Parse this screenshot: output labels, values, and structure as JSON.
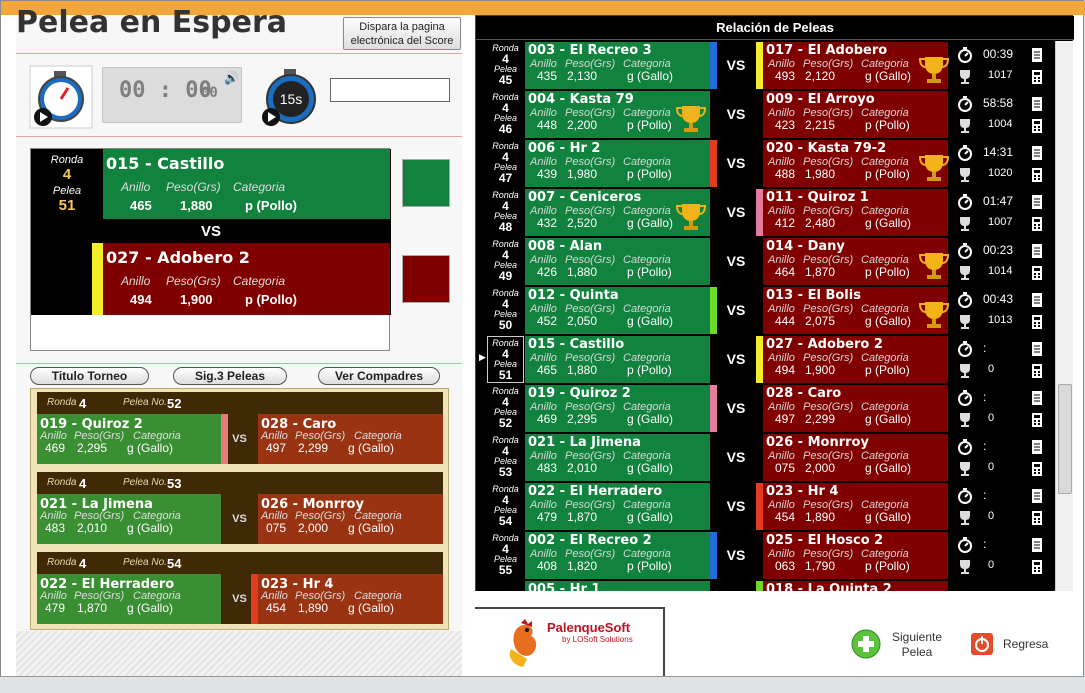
{
  "title": "Pelea en Espera",
  "dispara": [
    "Dispara la pagina",
    "electrónica del Score"
  ],
  "clock": {
    "time": "00 : 00",
    "sec": "00",
    "speaker": "🔊"
  },
  "countdown_label": "15s",
  "current": {
    "ronda_label": "Ronda",
    "ronda": "4",
    "pelea_label": "Pelea",
    "pelea": "51",
    "green": {
      "name": "015 - Castillo",
      "anillo": "465",
      "peso": "1,880",
      "cat": "p (Pollo)"
    },
    "vs": "VS",
    "red": {
      "name": "027 - Adobero 2",
      "anillo": "494",
      "peso": "1,900",
      "cat": "p (Pollo)"
    },
    "lbl_anillo": "Anillo",
    "lbl_peso": "Peso(Grs)",
    "lbl_cat": "Categoria"
  },
  "buttons": {
    "titulo": "Titulo Torneo",
    "sig3": "Sig.3 Peleas",
    "compadres": "Ver Compadres"
  },
  "next3": [
    {
      "ronda": "4",
      "pelea": "52",
      "strip": "#e57c7c",
      "g": {
        "name": "019 - Quiroz 2",
        "anillo": "469",
        "peso": "2,295",
        "cat": "g (Gallo)"
      },
      "r": {
        "name": "028 - Caro",
        "anillo": "497",
        "peso": "2,299",
        "cat": "g (Gallo)"
      }
    },
    {
      "ronda": "4",
      "pelea": "53",
      "strip": "",
      "g": {
        "name": "021 - La Jimena",
        "anillo": "483",
        "peso": "2,010",
        "cat": "g (Gallo)"
      },
      "r": {
        "name": "026 - Monrroy",
        "anillo": "075",
        "peso": "2,000",
        "cat": "g (Gallo)"
      }
    },
    {
      "ronda": "4",
      "pelea": "54",
      "strip": "#e43a1f",
      "g": {
        "name": "022 - El Herradero",
        "anillo": "479",
        "peso": "1,870",
        "cat": "g (Gallo)"
      },
      "r": {
        "name": "023 - Hr 4",
        "anillo": "454",
        "peso": "1,890",
        "cat": "g (Gallo)"
      }
    }
  ],
  "next_labels": {
    "ronda": "Ronda",
    "pelea": "Pelea No.",
    "vs": "VS",
    "anillo": "Anillo",
    "peso": "Peso(Grs)",
    "cat": "Categoria"
  },
  "rel_title": "Relación de Peleas",
  "rows": [
    {
      "ronda": "4",
      "pelea": "45",
      "g": {
        "name": "003 - El Recreo 3",
        "anillo": "435",
        "peso": "2,130",
        "cat": "g (Gallo)"
      },
      "gstrip": "#1e6fd9",
      "rstrip": "#f6ed2a",
      "r": {
        "name": "017 - El Adobero",
        "anillo": "493",
        "peso": "2,120",
        "cat": "g (Gallo)"
      },
      "win": "r",
      "time": "00:39",
      "code": "1017"
    },
    {
      "ronda": "4",
      "pelea": "46",
      "g": {
        "name": "004 - Kasta 79",
        "anillo": "448",
        "peso": "2,200",
        "cat": "p (Pollo)"
      },
      "gstrip": "",
      "rstrip": "",
      "r": {
        "name": "009 - El Arroyo",
        "anillo": "423",
        "peso": "2,215",
        "cat": "p (Pollo)"
      },
      "win": "g",
      "time": "58:58",
      "code": "1004"
    },
    {
      "ronda": "4",
      "pelea": "47",
      "g": {
        "name": "006 - Hr 2",
        "anillo": "439",
        "peso": "1,980",
        "cat": "p (Pollo)"
      },
      "gstrip": "#e43a1f",
      "rstrip": "",
      "r": {
        "name": "020 - Kasta 79-2",
        "anillo": "488",
        "peso": "1,980",
        "cat": "p (Pollo)"
      },
      "win": "r",
      "time": "14:31",
      "code": "1020"
    },
    {
      "ronda": "4",
      "pelea": "48",
      "g": {
        "name": "007 - Ceniceros",
        "anillo": "432",
        "peso": "2,520",
        "cat": "g (Gallo)"
      },
      "gstrip": "",
      "rstrip": "#e57ca0",
      "r": {
        "name": "011 - Quiroz 1",
        "anillo": "412",
        "peso": "2,480",
        "cat": "g (Gallo)"
      },
      "win": "g",
      "time": "01:47",
      "code": "1007"
    },
    {
      "ronda": "4",
      "pelea": "49",
      "g": {
        "name": "008 - Alan",
        "anillo": "426",
        "peso": "1,880",
        "cat": "p (Pollo)"
      },
      "gstrip": "",
      "rstrip": "",
      "r": {
        "name": "014 - Dany",
        "anillo": "464",
        "peso": "1,870",
        "cat": "p (Pollo)"
      },
      "win": "r",
      "time": "00:23",
      "code": "1014"
    },
    {
      "ronda": "4",
      "pelea": "50",
      "g": {
        "name": "012 - Quinta",
        "anillo": "452",
        "peso": "2,050",
        "cat": "g (Gallo)"
      },
      "gstrip": "#6fd92a",
      "rstrip": "",
      "r": {
        "name": "013 - El Bolis",
        "anillo": "444",
        "peso": "2,075",
        "cat": "g (Gallo)"
      },
      "win": "r",
      "time": "00:43",
      "code": "1013"
    },
    {
      "ronda": "4",
      "pelea": "51",
      "g": {
        "name": "015 - Castillo",
        "anillo": "465",
        "peso": "1,880",
        "cat": "p (Pollo)"
      },
      "gstrip": "",
      "rstrip": "#f6ed2a",
      "r": {
        "name": "027 - Adobero 2",
        "anillo": "494",
        "peso": "1,900",
        "cat": "p (Pollo)"
      },
      "win": "",
      "time": ":",
      "code": "0",
      "current": true
    },
    {
      "ronda": "4",
      "pelea": "52",
      "g": {
        "name": "019 - Quiroz 2",
        "anillo": "469",
        "peso": "2,295",
        "cat": "g (Gallo)"
      },
      "gstrip": "#e57ca0",
      "rstrip": "",
      "r": {
        "name": "028 - Caro",
        "anillo": "497",
        "peso": "2,299",
        "cat": "g (Gallo)"
      },
      "win": "",
      "time": ":",
      "code": "0"
    },
    {
      "ronda": "4",
      "pelea": "53",
      "g": {
        "name": "021 - La Jimena",
        "anillo": "483",
        "peso": "2,010",
        "cat": "g (Gallo)"
      },
      "gstrip": "",
      "rstrip": "",
      "r": {
        "name": "026 - Monrroy",
        "anillo": "075",
        "peso": "2,000",
        "cat": "g (Gallo)"
      },
      "win": "",
      "time": ":",
      "code": "0"
    },
    {
      "ronda": "4",
      "pelea": "54",
      "g": {
        "name": "022 - El Herradero",
        "anillo": "479",
        "peso": "1,870",
        "cat": "g (Gallo)"
      },
      "gstrip": "",
      "rstrip": "#e43a1f",
      "r": {
        "name": "023 - Hr 4",
        "anillo": "454",
        "peso": "1,890",
        "cat": "g (Gallo)"
      },
      "win": "",
      "time": ":",
      "code": "0"
    },
    {
      "ronda": "4",
      "pelea": "55",
      "g": {
        "name": "002 - El Recreo 2",
        "anillo": "408",
        "peso": "1,820",
        "cat": "p (Pollo)"
      },
      "gstrip": "#1e6fd9",
      "rstrip": "",
      "r": {
        "name": "025 - El Hosco 2",
        "anillo": "063",
        "peso": "1,790",
        "cat": "p (Pollo)"
      },
      "win": "",
      "time": ":",
      "code": "0"
    },
    {
      "ronda": "",
      "pelea": "",
      "g": {
        "name": "005 - Hr 1",
        "anillo": "",
        "peso": "",
        "cat": ""
      },
      "gstrip": "",
      "rstrip": "#6fd92a",
      "r": {
        "name": "018 - La Quinta 2",
        "anillo": "",
        "peso": "",
        "cat": ""
      },
      "win": "",
      "time": "",
      "code": "",
      "partial": true
    }
  ],
  "row_labels": {
    "ronda": "Ronda",
    "pelea": "Pelea",
    "vs": "VS",
    "anillo": "Anillo",
    "peso": "Peso(Grs)",
    "cat": "Categoria"
  },
  "brand": {
    "name": "PalenqueSoft",
    "by": "by LOSoft Solutions"
  },
  "siguiente": [
    "Siguiente",
    "Pelea"
  ],
  "regresa": "Regresa"
}
